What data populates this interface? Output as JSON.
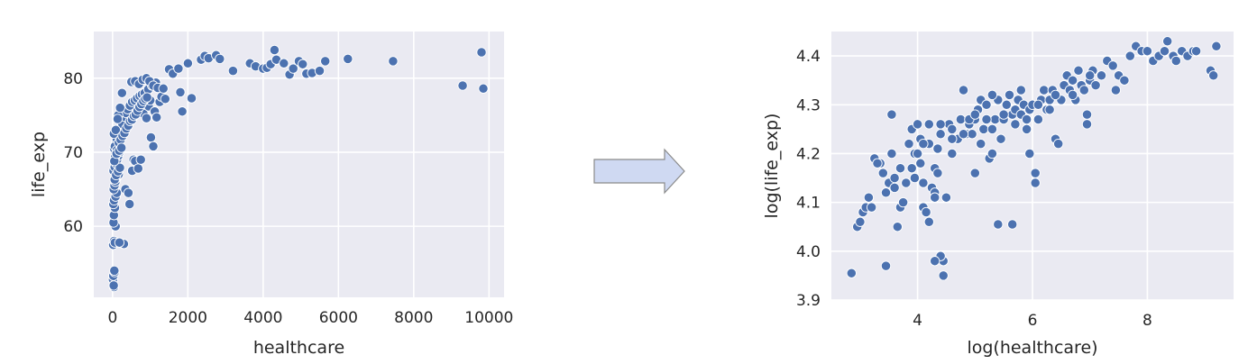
{
  "chart_data": [
    {
      "type": "scatter",
      "xlabel": "healthcare",
      "ylabel": "life_exp",
      "xlim": [
        -500,
        10400
      ],
      "ylim": [
        50.4,
        86.3
      ],
      "xticks": [
        0,
        2000,
        4000,
        6000,
        8000,
        10000
      ],
      "yticks": [
        60,
        70,
        80
      ],
      "grid": true,
      "points": [
        [
          10,
          52.8
        ],
        [
          20,
          53.3
        ],
        [
          40,
          51.8
        ],
        [
          55,
          53.8
        ],
        [
          30,
          52.0
        ],
        [
          45,
          54.0
        ],
        [
          15,
          57.5
        ],
        [
          40,
          58.0
        ],
        [
          60,
          57.8
        ],
        [
          80,
          60.0
        ],
        [
          25,
          60.5
        ],
        [
          35,
          61.5
        ],
        [
          60,
          62.5
        ],
        [
          20,
          63.0
        ],
        [
          40,
          63.5
        ],
        [
          80,
          64.0
        ],
        [
          110,
          64.5
        ],
        [
          30,
          65.0
        ],
        [
          50,
          65.5
        ],
        [
          75,
          66.0
        ],
        [
          100,
          66.5
        ],
        [
          130,
          66.8
        ],
        [
          160,
          67.0
        ],
        [
          25,
          67.5
        ],
        [
          55,
          68.0
        ],
        [
          90,
          68.5
        ],
        [
          120,
          69.0
        ],
        [
          150,
          69.5
        ],
        [
          185,
          70.0
        ],
        [
          40,
          70.5
        ],
        [
          70,
          71.0
        ],
        [
          100,
          71.5
        ],
        [
          140,
          72.0
        ],
        [
          190,
          72.5
        ],
        [
          240,
          73.0
        ],
        [
          290,
          73.5
        ],
        [
          340,
          74.0
        ],
        [
          60,
          70.8
        ],
        [
          110,
          71.8
        ],
        [
          210,
          72.8
        ],
        [
          260,
          73.8
        ],
        [
          310,
          74.8
        ],
        [
          360,
          75.3
        ],
        [
          400,
          75.8
        ],
        [
          460,
          76.3
        ],
        [
          520,
          76.8
        ],
        [
          590,
          77.0
        ],
        [
          650,
          77.3
        ],
        [
          720,
          77.6
        ],
        [
          780,
          77.8
        ],
        [
          850,
          78.0
        ],
        [
          950,
          78.5
        ],
        [
          1050,
          79.0
        ],
        [
          1150,
          79.4
        ],
        [
          150,
          75.0
        ],
        [
          200,
          76.0
        ],
        [
          250,
          78.0
        ],
        [
          300,
          57.6
        ],
        [
          180,
          57.8
        ],
        [
          340,
          65.0
        ],
        [
          420,
          64.5
        ],
        [
          450,
          63.0
        ],
        [
          520,
          67.5
        ],
        [
          560,
          69.0
        ],
        [
          600,
          68.8
        ],
        [
          680,
          67.8
        ],
        [
          750,
          69.0
        ],
        [
          820,
          75.2
        ],
        [
          900,
          74.6
        ],
        [
          960,
          76.2
        ],
        [
          1000,
          77.0
        ],
        [
          1020,
          72.0
        ],
        [
          1080,
          70.8
        ],
        [
          1120,
          75.5
        ],
        [
          1170,
          74.7
        ],
        [
          1250,
          76.8
        ],
        [
          1300,
          77.5
        ],
        [
          1400,
          77.2
        ],
        [
          500,
          79.5
        ],
        [
          600,
          79.6
        ],
        [
          700,
          79.2
        ],
        [
          800,
          79.8
        ],
        [
          900,
          80.0
        ],
        [
          980,
          79.6
        ],
        [
          1080,
          79.0
        ],
        [
          1200,
          78.7
        ],
        [
          1350,
          78.6
        ],
        [
          1500,
          81.2
        ],
        [
          1600,
          80.6
        ],
        [
          1750,
          81.3
        ],
        [
          1800,
          78.1
        ],
        [
          1850,
          75.5
        ],
        [
          2000,
          82.0
        ],
        [
          2100,
          77.3
        ],
        [
          2350,
          82.5
        ],
        [
          2450,
          83.0
        ],
        [
          2550,
          82.7
        ],
        [
          2750,
          83.1
        ],
        [
          2850,
          82.6
        ],
        [
          3200,
          81.0
        ],
        [
          3650,
          82.0
        ],
        [
          3800,
          81.6
        ],
        [
          4000,
          81.3
        ],
        [
          4100,
          81.4
        ],
        [
          4200,
          81.9
        ],
        [
          4300,
          83.8
        ],
        [
          4350,
          82.5
        ],
        [
          4550,
          82.0
        ],
        [
          4700,
          80.5
        ],
        [
          4800,
          81.3
        ],
        [
          4950,
          82.3
        ],
        [
          5050,
          81.9
        ],
        [
          5150,
          80.6
        ],
        [
          5300,
          80.7
        ],
        [
          5500,
          81.0
        ],
        [
          5650,
          82.3
        ],
        [
          6250,
          82.6
        ],
        [
          7450,
          82.3
        ],
        [
          9300,
          79.0
        ],
        [
          9800,
          83.5
        ],
        [
          9850,
          78.6
        ],
        [
          35,
          72.5
        ],
        [
          85,
          73.0
        ],
        [
          135,
          74.5
        ],
        [
          65,
          69.3
        ],
        [
          115,
          70.3
        ],
        [
          165,
          71.3
        ],
        [
          215,
          71.7
        ],
        [
          265,
          72.2
        ],
        [
          315,
          72.6
        ],
        [
          365,
          73.2
        ],
        [
          415,
          73.6
        ],
        [
          465,
          74.2
        ],
        [
          515,
          74.4
        ],
        [
          565,
          74.9
        ],
        [
          615,
          75.1
        ],
        [
          665,
          75.6
        ],
        [
          715,
          76.1
        ],
        [
          765,
          76.5
        ],
        [
          815,
          76.9
        ],
        [
          865,
          77.2
        ],
        [
          915,
          77.4
        ],
        [
          55,
          66.3
        ],
        [
          95,
          66.9
        ],
        [
          145,
          67.4
        ],
        [
          195,
          67.9
        ],
        [
          45,
          68.8
        ],
        [
          105,
          69.8
        ],
        [
          175,
          70.2
        ],
        [
          235,
          70.6
        ]
      ]
    },
    {
      "type": "scatter",
      "xlabel": "log(healthcare)",
      "ylabel": "log(life_exp)",
      "xlim": [
        2.5,
        9.5
      ],
      "ylim": [
        3.9,
        4.45
      ],
      "xticks": [
        4,
        6,
        8
      ],
      "yticks": [
        3.9,
        4.0,
        4.1,
        4.2,
        4.3,
        4.4
      ],
      "grid": true,
      "points": [
        [
          2.85,
          3.955
        ],
        [
          2.95,
          4.05
        ],
        [
          3.0,
          4.06
        ],
        [
          3.05,
          4.08
        ],
        [
          3.1,
          4.09
        ],
        [
          3.15,
          4.11
        ],
        [
          3.2,
          4.09
        ],
        [
          3.25,
          4.19
        ],
        [
          3.35,
          4.18
        ],
        [
          3.4,
          4.16
        ],
        [
          3.45,
          4.12
        ],
        [
          3.45,
          3.97
        ],
        [
          3.5,
          4.14
        ],
        [
          3.55,
          4.28
        ],
        [
          3.6,
          4.13
        ],
        [
          3.6,
          4.15
        ],
        [
          3.65,
          4.05
        ],
        [
          3.7,
          4.09
        ],
        [
          3.7,
          4.17
        ],
        [
          3.75,
          4.1
        ],
        [
          3.8,
          4.14
        ],
        [
          3.85,
          4.22
        ],
        [
          3.9,
          4.25
        ],
        [
          3.95,
          4.15
        ],
        [
          3.95,
          4.2
        ],
        [
          4.0,
          4.26
        ],
        [
          4.05,
          4.23
        ],
        [
          4.05,
          4.18
        ],
        [
          4.1,
          4.14
        ],
        [
          4.1,
          4.09
        ],
        [
          4.15,
          4.08
        ],
        [
          4.2,
          4.22
        ],
        [
          4.2,
          4.26
        ],
        [
          4.25,
          4.13
        ],
        [
          4.3,
          4.12
        ],
        [
          4.3,
          4.17
        ],
        [
          4.35,
          4.21
        ],
        [
          4.4,
          4.24
        ],
        [
          4.45,
          3.98
        ],
        [
          4.45,
          3.95
        ],
        [
          4.4,
          3.99
        ],
        [
          4.3,
          3.98
        ],
        [
          4.2,
          4.06
        ],
        [
          4.5,
          4.11
        ],
        [
          4.55,
          4.26
        ],
        [
          4.6,
          4.25
        ],
        [
          4.7,
          4.23
        ],
        [
          4.75,
          4.27
        ],
        [
          4.8,
          4.33
        ],
        [
          4.85,
          4.24
        ],
        [
          4.9,
          4.26
        ],
        [
          4.95,
          4.24
        ],
        [
          5.0,
          4.27
        ],
        [
          5.0,
          4.16
        ],
        [
          5.05,
          4.29
        ],
        [
          5.1,
          4.22
        ],
        [
          5.1,
          4.31
        ],
        [
          5.15,
          4.25
        ],
        [
          5.2,
          4.3
        ],
        [
          5.25,
          4.19
        ],
        [
          5.3,
          4.2
        ],
        [
          5.35,
          4.27
        ],
        [
          5.4,
          4.31
        ],
        [
          5.45,
          4.23
        ],
        [
          5.5,
          4.27
        ],
        [
          5.55,
          4.3
        ],
        [
          5.6,
          4.32
        ],
        [
          5.65,
          4.28
        ],
        [
          5.7,
          4.26
        ],
        [
          5.7,
          4.29
        ],
        [
          5.75,
          4.31
        ],
        [
          5.8,
          4.33
        ],
        [
          5.85,
          4.3
        ],
        [
          5.9,
          4.25
        ],
        [
          5.95,
          4.2
        ],
        [
          5.95,
          4.29
        ],
        [
          6.0,
          4.3
        ],
        [
          6.05,
          4.16
        ],
        [
          6.05,
          4.14
        ],
        [
          6.1,
          4.27
        ],
        [
          6.15,
          4.31
        ],
        [
          6.2,
          4.33
        ],
        [
          6.25,
          4.29
        ],
        [
          6.3,
          4.31
        ],
        [
          6.35,
          4.33
        ],
        [
          6.4,
          4.23
        ],
        [
          6.45,
          4.22
        ],
        [
          6.5,
          4.31
        ],
        [
          6.55,
          4.34
        ],
        [
          6.6,
          4.36
        ],
        [
          6.65,
          4.33
        ],
        [
          6.7,
          4.35
        ],
        [
          6.75,
          4.31
        ],
        [
          6.8,
          4.37
        ],
        [
          6.85,
          4.34
        ],
        [
          6.9,
          4.33
        ],
        [
          6.95,
          4.28
        ],
        [
          6.95,
          4.26
        ],
        [
          7.0,
          4.35
        ],
        [
          7.05,
          4.37
        ],
        [
          7.1,
          4.34
        ],
        [
          7.2,
          4.36
        ],
        [
          7.3,
          4.39
        ],
        [
          7.45,
          4.33
        ],
        [
          7.5,
          4.36
        ],
        [
          7.6,
          4.35
        ],
        [
          7.7,
          4.4
        ],
        [
          7.8,
          4.42
        ],
        [
          7.9,
          4.41
        ],
        [
          8.0,
          4.41
        ],
        [
          8.1,
          4.39
        ],
        [
          8.2,
          4.4
        ],
        [
          8.3,
          4.41
        ],
        [
          8.35,
          4.43
        ],
        [
          8.45,
          4.4
        ],
        [
          8.5,
          4.39
        ],
        [
          8.6,
          4.41
        ],
        [
          8.7,
          4.4
        ],
        [
          8.8,
          4.41
        ],
        [
          8.85,
          4.41
        ],
        [
          9.1,
          4.37
        ],
        [
          9.15,
          4.36
        ],
        [
          9.2,
          4.42
        ],
        [
          5.4,
          4.055
        ],
        [
          5.65,
          4.055
        ],
        [
          4.9,
          4.27
        ],
        [
          5.2,
          4.27
        ],
        [
          5.5,
          4.28
        ],
        [
          5.8,
          4.28
        ],
        [
          6.1,
          4.3
        ],
        [
          6.4,
          4.32
        ],
        [
          6.7,
          4.32
        ],
        [
          7.0,
          4.36
        ],
        [
          7.4,
          4.38
        ],
        [
          4.6,
          4.23
        ],
        [
          4.8,
          4.24
        ],
        [
          5.3,
          4.25
        ],
        [
          5.9,
          4.27
        ],
        [
          6.3,
          4.29
        ],
        [
          3.3,
          4.18
        ],
        [
          3.55,
          4.2
        ],
        [
          4.0,
          4.2
        ],
        [
          4.35,
          4.16
        ],
        [
          4.6,
          4.2
        ],
        [
          4.3,
          4.11
        ],
        [
          3.9,
          4.17
        ],
        [
          4.1,
          4.22
        ],
        [
          4.4,
          4.26
        ],
        [
          5.0,
          4.28
        ],
        [
          5.3,
          4.32
        ]
      ]
    }
  ],
  "arrow": {
    "color": "#cfd9f2",
    "stroke": "#8a8a8a"
  },
  "colors": {
    "plot_bg": "#eaeaf2",
    "point_fill": "#4c72b0",
    "point_edge": "#ffffff",
    "grid": "#ffffff"
  }
}
